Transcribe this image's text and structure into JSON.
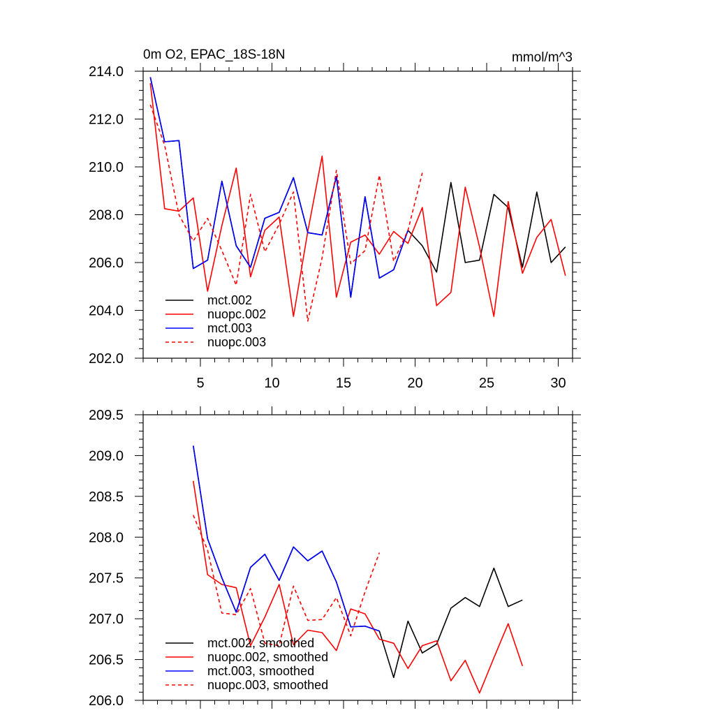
{
  "chart_data": [
    {
      "type": "line",
      "title": "0m O2, EPAC_18S-18N",
      "units": "mmol/m^3",
      "xlim": [
        1,
        31
      ],
      "ylim": [
        202.0,
        214.0
      ],
      "xticks": [
        5,
        10,
        15,
        20,
        25,
        30
      ],
      "yticks": [
        202.0,
        204.0,
        206.0,
        208.0,
        210.0,
        212.0,
        214.0
      ],
      "legend_position": "bottom-left",
      "series": [
        {
          "name": "mct.002",
          "color": "#000000",
          "dash": "solid",
          "x": [
            1.5,
            2.5,
            3.5,
            4.5,
            5.5,
            6.5,
            7.5,
            8.5,
            9.5,
            10.5,
            11.5,
            12.5,
            13.5,
            14.5,
            15.5,
            16.5,
            17.5,
            18.5,
            19.5,
            20.5,
            21.5,
            22.5,
            23.5,
            24.5,
            25.5,
            26.5,
            27.5,
            28.5,
            29.5,
            30.5
          ],
          "values": [
            213.75,
            211.05,
            211.1,
            205.75,
            206.1,
            209.4,
            206.7,
            205.8,
            207.85,
            208.1,
            209.55,
            207.25,
            207.15,
            209.6,
            204.55,
            208.75,
            205.35,
            205.7,
            207.35,
            206.7,
            205.6,
            209.35,
            206.0,
            206.1,
            208.85,
            208.3,
            205.8,
            208.95,
            206.0,
            206.65
          ]
        },
        {
          "name": "nuopc.002",
          "color": "#ff0000",
          "dash": "solid",
          "x": [
            1.5,
            2.5,
            3.5,
            4.5,
            5.5,
            6.5,
            7.5,
            8.5,
            9.5,
            10.5,
            11.5,
            12.5,
            13.5,
            14.5,
            15.5,
            16.5,
            17.5,
            18.5,
            19.5,
            20.5,
            21.5,
            22.5,
            23.5,
            24.5,
            25.5,
            26.5,
            27.5,
            28.5,
            29.5,
            30.5
          ],
          "values": [
            213.5,
            208.25,
            208.15,
            208.7,
            204.8,
            207.55,
            209.95,
            205.4,
            207.35,
            207.9,
            203.75,
            207.3,
            210.45,
            204.55,
            206.85,
            207.15,
            206.35,
            207.3,
            206.8,
            208.3,
            204.2,
            204.75,
            209.15,
            206.65,
            203.75,
            208.55,
            205.55,
            207.05,
            207.8,
            205.45
          ]
        },
        {
          "name": "mct.003",
          "color": "#0000ff",
          "dash": "solid",
          "x": [
            1.5,
            2.5,
            3.5,
            4.5,
            5.5,
            6.5,
            7.5,
            8.5,
            9.5,
            10.5,
            11.5,
            12.5,
            13.5,
            14.5,
            15.5,
            16.5,
            17.5,
            18.5,
            19.5
          ],
          "values": [
            213.75,
            211.05,
            211.1,
            205.75,
            206.1,
            209.4,
            206.7,
            205.8,
            207.85,
            208.1,
            209.55,
            207.25,
            207.15,
            209.6,
            204.55,
            208.75,
            205.35,
            205.7,
            207.35
          ]
        },
        {
          "name": "nuopc.003",
          "color": "#ff0000",
          "dash": "dashed",
          "x": [
            1.5,
            2.5,
            3.5,
            4.5,
            5.5,
            6.5,
            7.5,
            8.5,
            9.5,
            10.5,
            11.5,
            12.5,
            13.5,
            14.5,
            15.5,
            16.5,
            17.5,
            18.5,
            19.5,
            20.5
          ],
          "values": [
            212.6,
            210.9,
            208.0,
            206.9,
            207.85,
            206.5,
            205.05,
            208.85,
            206.45,
            207.6,
            208.95,
            203.55,
            206.2,
            209.85,
            205.95,
            206.5,
            209.65,
            206.05,
            207.35,
            209.75
          ]
        }
      ]
    },
    {
      "type": "line",
      "title": "",
      "units": "",
      "xlim": [
        1,
        31
      ],
      "ylim": [
        206.0,
        209.5
      ],
      "xticks": [
        5,
        10,
        15,
        20,
        25,
        30
      ],
      "yticks": [
        206.0,
        206.5,
        207.0,
        207.5,
        208.0,
        208.5,
        209.0,
        209.5
      ],
      "legend_position": "bottom-left",
      "series": [
        {
          "name": "mct.002, smoothed",
          "color": "#000000",
          "dash": "solid",
          "x": [
            4.5,
            5.5,
            6.5,
            7.5,
            8.5,
            9.5,
            10.5,
            11.5,
            12.5,
            13.5,
            14.5,
            15.5,
            16.5,
            17.5,
            18.5,
            19.5,
            20.5,
            21.5,
            22.5,
            23.5,
            24.5,
            25.5,
            26.5,
            27.5
          ],
          "values": [
            209.12,
            207.98,
            207.5,
            207.08,
            207.63,
            207.79,
            207.47,
            207.88,
            207.71,
            207.83,
            207.45,
            206.9,
            206.91,
            206.85,
            206.28,
            206.97,
            206.58,
            206.69,
            207.13,
            207.26,
            207.15,
            207.62,
            207.15,
            207.23
          ]
        },
        {
          "name": "nuopc.002, smoothed",
          "color": "#ff0000",
          "dash": "solid",
          "x": [
            4.5,
            5.5,
            6.5,
            7.5,
            8.5,
            9.5,
            10.5,
            11.5,
            12.5,
            13.5,
            14.5,
            15.5,
            16.5,
            17.5,
            18.5,
            19.5,
            20.5,
            21.5,
            22.5,
            23.5,
            24.5,
            25.5,
            26.5,
            27.5
          ],
          "values": [
            208.69,
            207.54,
            207.42,
            207.38,
            206.67,
            207.02,
            207.42,
            206.68,
            206.86,
            206.83,
            206.61,
            207.12,
            207.06,
            206.75,
            206.7,
            206.39,
            206.67,
            206.73,
            206.24,
            206.49,
            206.09,
            206.52,
            206.94,
            206.42
          ]
        },
        {
          "name": "mct.003, smoothed",
          "color": "#0000ff",
          "dash": "solid",
          "x": [
            4.5,
            5.5,
            6.5,
            7.5,
            8.5,
            9.5,
            10.5,
            11.5,
            12.5,
            13.5,
            14.5,
            15.5,
            16.5,
            17.5
          ],
          "values": [
            209.12,
            207.98,
            207.5,
            207.08,
            207.63,
            207.79,
            207.47,
            207.88,
            207.71,
            207.83,
            207.45,
            206.9,
            206.91,
            206.85
          ]
        },
        {
          "name": "nuopc.003, smoothed",
          "color": "#ff0000",
          "dash": "dashed",
          "x": [
            4.5,
            5.5,
            6.5,
            7.5,
            8.5,
            9.5,
            10.5,
            11.5,
            12.5,
            13.5,
            14.5,
            15.5,
            16.5,
            17.5
          ],
          "values": [
            208.27,
            207.84,
            207.07,
            207.05,
            207.37,
            206.7,
            206.67,
            207.4,
            206.98,
            206.99,
            207.26,
            206.79,
            207.33,
            207.81
          ]
        }
      ]
    }
  ]
}
